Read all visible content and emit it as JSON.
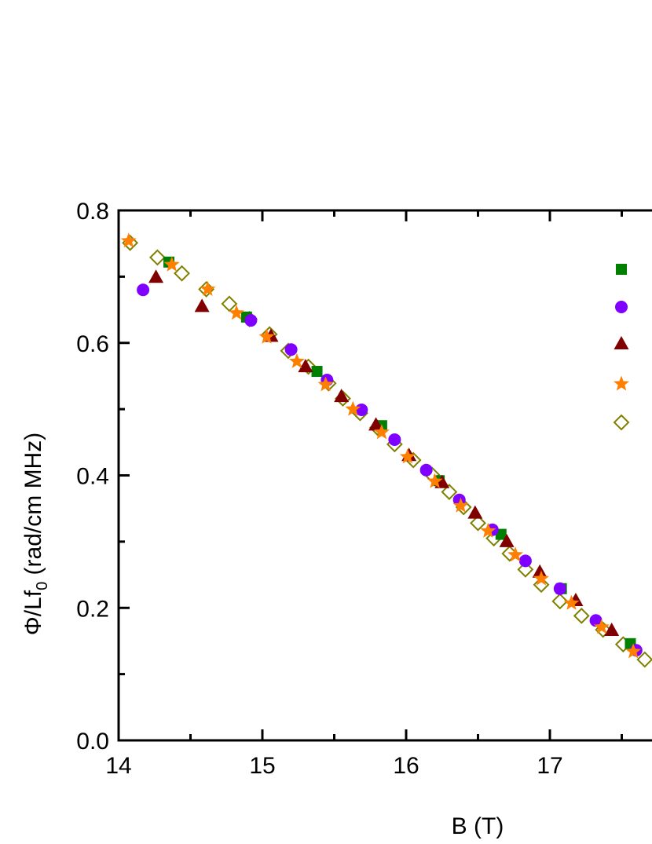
{
  "chart_data": {
    "type": "scatter",
    "xlabel": "B (T)",
    "ylabel_main": "Φ/Lf",
    "ylabel_sub": "0",
    "ylabel_rest": " (rad/cm MHz)",
    "xlim": [
      14,
      18
    ],
    "ylim": [
      0.0,
      0.8
    ],
    "x_ticks": [
      "14",
      "15",
      "16",
      "17"
    ],
    "y_ticks": [
      "0.0",
      "0.2",
      "0.4",
      "0.6",
      "0.8"
    ],
    "grid": false,
    "legend_placement": "right (labels cut off)",
    "series": [
      {
        "marker": "square",
        "color": "#008000",
        "filled": true,
        "x": [
          14.35,
          14.89,
          15.38,
          15.83,
          16.23,
          16.66,
          17.08,
          17.56
        ],
        "y": [
          0.722,
          0.639,
          0.557,
          0.475,
          0.392,
          0.311,
          0.229,
          0.146
        ]
      },
      {
        "marker": "circle",
        "color": "#8000FF",
        "filled": true,
        "x": [
          14.17,
          14.92,
          15.2,
          15.45,
          15.69,
          15.92,
          16.14,
          16.37,
          16.6,
          16.83,
          17.07,
          17.32,
          17.6
        ],
        "y": [
          0.68,
          0.634,
          0.59,
          0.544,
          0.499,
          0.454,
          0.408,
          0.363,
          0.318,
          0.271,
          0.229,
          0.181,
          0.136
        ]
      },
      {
        "marker": "triangle",
        "color": "#800000",
        "filled": true,
        "x": [
          14.26,
          14.58,
          15.06,
          15.3,
          15.55,
          15.79,
          16.02,
          16.25,
          16.48,
          16.7,
          16.93,
          17.18,
          17.43
        ],
        "y": [
          0.699,
          0.655,
          0.61,
          0.564,
          0.519,
          0.476,
          0.43,
          0.389,
          0.343,
          0.3,
          0.254,
          0.211,
          0.166
        ]
      },
      {
        "marker": "star",
        "color": "#FF8000",
        "filled": true,
        "x": [
          14.07,
          14.37,
          14.62,
          14.82,
          15.03,
          15.24,
          15.44,
          15.63,
          15.83,
          16.01,
          16.2,
          16.38,
          16.57,
          16.76,
          16.94,
          17.15,
          17.36,
          17.58
        ],
        "y": [
          0.754,
          0.718,
          0.681,
          0.645,
          0.609,
          0.572,
          0.537,
          0.5,
          0.465,
          0.428,
          0.391,
          0.354,
          0.316,
          0.28,
          0.244,
          0.207,
          0.171,
          0.134
        ]
      },
      {
        "marker": "diamond",
        "color": "#808000",
        "filled": false,
        "x": [
          14.08,
          14.27,
          14.44,
          14.61,
          14.77,
          14.91,
          15.05,
          15.18,
          15.32,
          15.46,
          15.56,
          15.68,
          15.8,
          15.92,
          16.05,
          16.18,
          16.3,
          16.4,
          16.5,
          16.61,
          16.72,
          16.83,
          16.94,
          17.07,
          17.22,
          17.37,
          17.51,
          17.66
        ],
        "y": [
          0.751,
          0.729,
          0.705,
          0.681,
          0.659,
          0.636,
          0.613,
          0.588,
          0.564,
          0.539,
          0.516,
          0.494,
          0.472,
          0.447,
          0.423,
          0.401,
          0.375,
          0.352,
          0.328,
          0.305,
          0.282,
          0.258,
          0.235,
          0.21,
          0.188,
          0.167,
          0.145,
          0.122
        ]
      }
    ]
  }
}
